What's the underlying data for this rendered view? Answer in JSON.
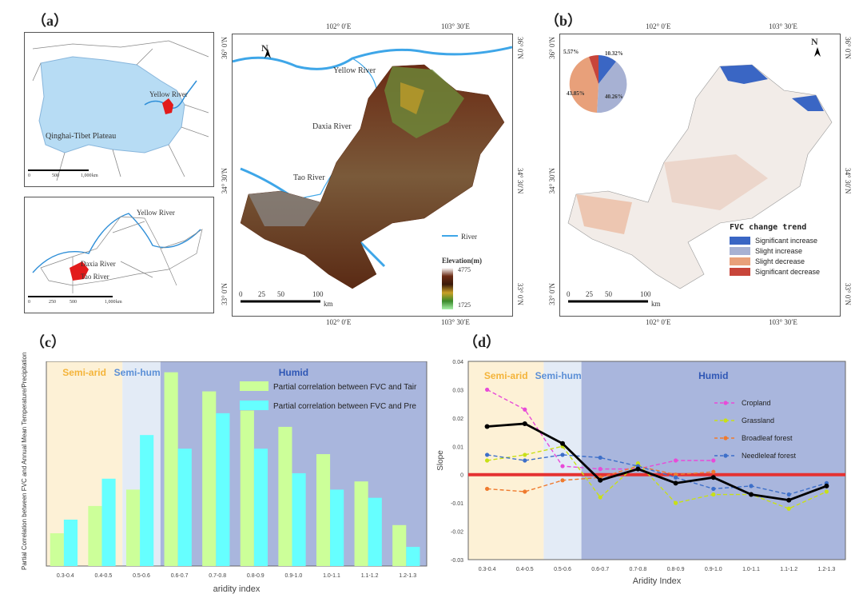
{
  "panel_labels": {
    "a": "（a）",
    "b": "（b）",
    "c": "（c）",
    "d": "（d）"
  },
  "map_a": {
    "inset1_label": "Qinghai-Tibet Plateau",
    "inset1_river": "Yellow River",
    "inset1_scale": [
      "0",
      "500",
      "1,000"
    ],
    "inset1_scale_unit": "km",
    "inset2_labels": [
      "Yellow River",
      "Daxia River",
      "Tao River"
    ],
    "inset2_scale": [
      "0",
      "250",
      "500",
      "1,000"
    ],
    "inset2_scale_unit": "km",
    "main_top_ticks": [
      "102° 0′E",
      "103° 30′E"
    ],
    "main_bottom_ticks": [
      "102° 0′E",
      "103° 30′E"
    ],
    "main_left_ticks": [
      "36° 0′N",
      "34° 30′N",
      "33° 0′N"
    ],
    "main_right_ticks": [
      "36° 0′N",
      "34° 30′N",
      "33° 0′N"
    ],
    "rivers": [
      "Yellow River",
      "Daxia River",
      "Tao River"
    ],
    "north": "N",
    "legend_river": "River",
    "legend_elevation_title": "Elevation(m)",
    "elevation_max": "4775",
    "elevation_min": "1725",
    "scale": [
      "0",
      "25",
      "50",
      "100"
    ],
    "scale_unit": "km"
  },
  "map_b": {
    "top_ticks": [
      "102° 0′E",
      "103° 30′E"
    ],
    "bottom_ticks": [
      "102° 0′E",
      "103° 30′E"
    ],
    "left_ticks": [
      "36° 0′N",
      "34° 30′N",
      "33° 0′N"
    ],
    "right_ticks": [
      "36° 0′N",
      "34° 30′N",
      "33° 0′N"
    ],
    "north": "N",
    "pie_labels": [
      "10.32%",
      "40.26%",
      "43.85%",
      "5.57%"
    ],
    "legend_title": "FVC change trend",
    "legend_items": [
      {
        "label": "Significant increase",
        "color": "#3a66c4"
      },
      {
        "label": "Slight increase",
        "color": "#a7b1d3"
      },
      {
        "label": "Slight decrease",
        "color": "#e8a07a"
      },
      {
        "label": "Significant decrease",
        "color": "#c8453a"
      }
    ],
    "scale": [
      "0",
      "25",
      "50",
      "100"
    ],
    "scale_unit": "km"
  },
  "chart_data": [
    {
      "type": "bar",
      "title": "",
      "xlabel": "aridity index",
      "ylabel": "Partial Correlation between FVC and Annual Mean Temperature/Precipitation",
      "categories": [
        "0.3-0.4",
        "0.4-0.5",
        "0.5-0.6",
        "0.6-0.7",
        "0.7-0.8",
        "0.8-0.9",
        "0.9-1.0",
        "1.0-1.1",
        "1.1-1.2",
        "1.2-1.3"
      ],
      "series": [
        {
          "name": "Partial correlation between FVC and Tair",
          "color": "#ccff99",
          "values": [
            0.12,
            0.22,
            0.28,
            0.71,
            0.64,
            0.57,
            0.51,
            0.41,
            0.31,
            0.15
          ]
        },
        {
          "name": "Partial correlation between FVC and Pre",
          "color": "#66ffff",
          "values": [
            0.17,
            0.32,
            0.48,
            0.43,
            0.56,
            0.43,
            0.34,
            0.28,
            0.25,
            0.07
          ]
        }
      ],
      "ylim": [
        0,
        0.75
      ],
      "zones": [
        {
          "label": "Semi-arid",
          "from": 0,
          "to": 2,
          "color": "#fdf1d6",
          "text_color": "#f4b43a"
        },
        {
          "label": "Semi-humid",
          "from": 2,
          "to": 3,
          "color": "#e3ebf6",
          "text_color": "#5b8fd6"
        },
        {
          "label": "Humid",
          "from": 3,
          "to": 10,
          "color": "#a9b6dd",
          "text_color": "#2f57b5"
        }
      ],
      "legend_position": "top-right",
      "grid": false
    },
    {
      "type": "line",
      "title": "",
      "xlabel": "Aridity Index",
      "ylabel": "Slope",
      "categories": [
        "0.3-0.4",
        "0.4-0.5",
        "0.5-0.6",
        "0.6-0.7",
        "0.7-0.8",
        "0.8-0.9",
        "0.9-1.0",
        "1.0-1.1",
        "1.1-1.2",
        "1.2-1.3"
      ],
      "ylim": [
        -0.03,
        0.04
      ],
      "yticks": [
        "0.04",
        "0.03",
        "0.02",
        "0.01",
        "0",
        "-0.01",
        "-0.02",
        "-0.03"
      ],
      "series": [
        {
          "name": "Cropland",
          "color": "#e84ad8",
          "dashed": true,
          "values": [
            0.03,
            0.023,
            0.003,
            0.002,
            0.002,
            0.005,
            0.005,
            null,
            null,
            null
          ]
        },
        {
          "name": "Grassland",
          "color": "#c8e016",
          "dashed": true,
          "values": [
            0.005,
            0.007,
            0.01,
            -0.008,
            0.004,
            -0.01,
            -0.007,
            -0.007,
            -0.012,
            -0.006
          ]
        },
        {
          "name": "Broadleaf forest",
          "color": "#ef7a2e",
          "dashed": true,
          "values": [
            -0.005,
            -0.006,
            -0.002,
            -0.001,
            0.003,
            0.0,
            0.001,
            null,
            null,
            null
          ]
        },
        {
          "name": "Needleleaf forest",
          "color": "#3d6fc9",
          "dashed": true,
          "values": [
            0.007,
            0.005,
            0.007,
            0.006,
            0.003,
            -0.001,
            -0.005,
            -0.004,
            -0.007,
            -0.003
          ]
        },
        {
          "name": "",
          "color": "#000000",
          "dashed": false,
          "values": [
            0.017,
            0.018,
            0.011,
            -0.002,
            0.002,
            -0.003,
            -0.001,
            -0.007,
            -0.009,
            -0.004
          ]
        }
      ],
      "zero_line_color": "#e53232",
      "zones": [
        {
          "label": "Semi-arid",
          "from": 0,
          "to": 2,
          "color": "#fdf1d6",
          "text_color": "#f4b43a"
        },
        {
          "label": "Semi-humid",
          "from": 2,
          "to": 3,
          "color": "#e3ebf6",
          "text_color": "#5b8fd6"
        },
        {
          "label": "Humid",
          "from": 3,
          "to": 10,
          "color": "#a9b6dd",
          "text_color": "#2f57b5"
        }
      ],
      "legend_position": "right",
      "grid": false
    }
  ]
}
